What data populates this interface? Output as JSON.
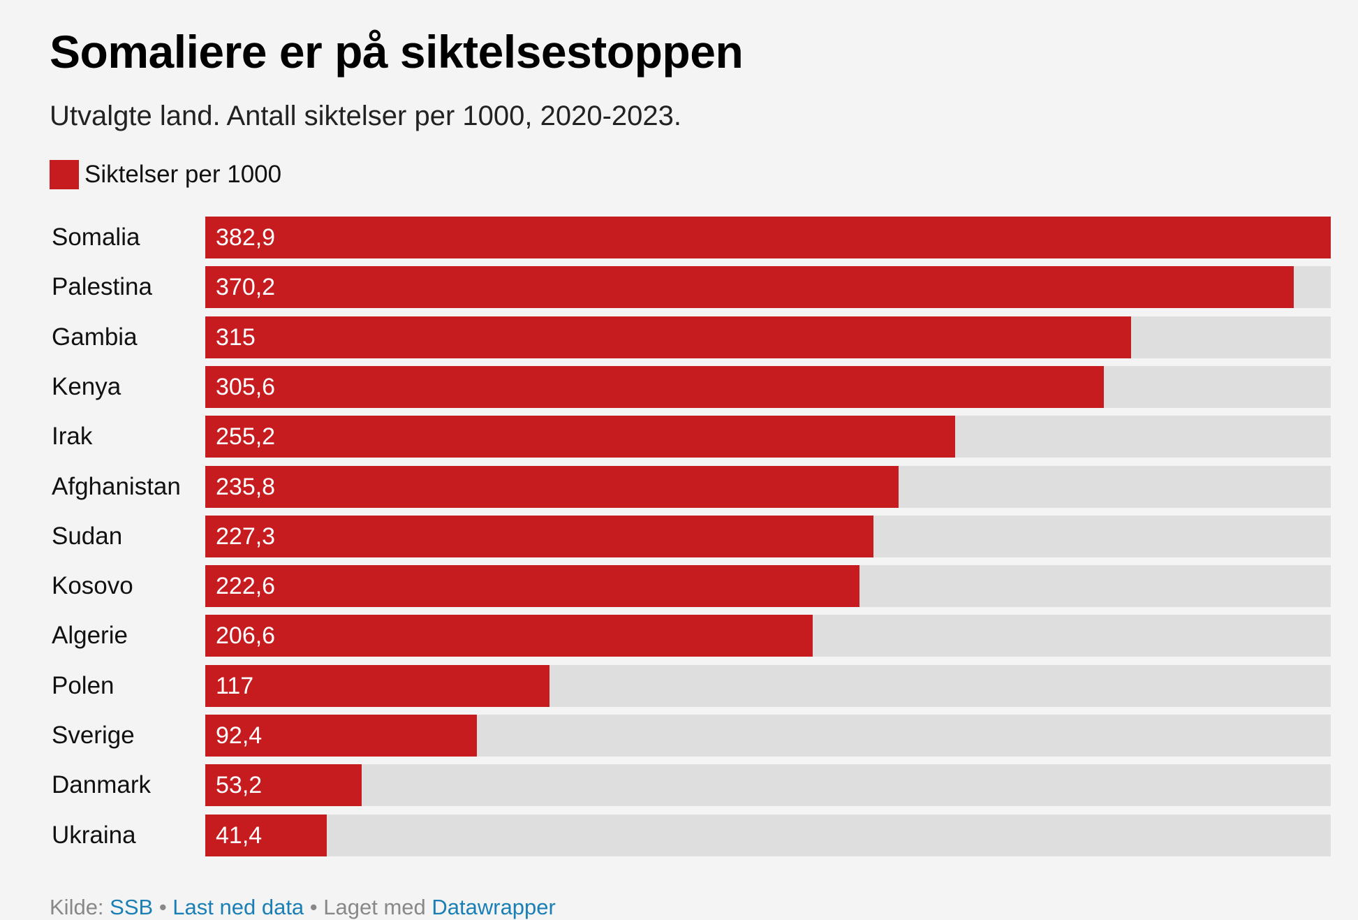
{
  "colors": {
    "bar": "#c71c1f",
    "track": "#dedede",
    "background": "#f4f4f4",
    "link": "#1a7fb5"
  },
  "chart_data": {
    "type": "bar",
    "orientation": "horizontal",
    "title": "Somaliere er på siktelsestoppen",
    "subtitle": "Utvalgte land. Antall siktelser per 1000, 2020-2023.",
    "legend": "Siktelser per 1000",
    "xlim": [
      0,
      382.9
    ],
    "series": [
      {
        "name": "Siktelser per 1000",
        "values": [
          382.9,
          370.2,
          315,
          305.6,
          255.2,
          235.8,
          227.3,
          222.6,
          206.6,
          117,
          92.4,
          53.2,
          41.4
        ]
      }
    ],
    "categories": [
      "Somalia",
      "Palestina",
      "Gambia",
      "Kenya",
      "Irak",
      "Afghanistan",
      "Sudan",
      "Kosovo",
      "Algerie",
      "Polen",
      "Sverige",
      "Danmark",
      "Ukraina"
    ],
    "value_labels": [
      "382,9",
      "370,2",
      "315",
      "305,6",
      "255,2",
      "235,8",
      "227,3",
      "222,6",
      "206,6",
      "117",
      "92,4",
      "53,2",
      "41,4"
    ]
  },
  "footer": {
    "source_prefix": "Kilde: ",
    "source_link": "SSB",
    "sep1": " • ",
    "download_link": "Last ned data",
    "sep2": " • Laget med ",
    "made_with_link": "Datawrapper"
  }
}
